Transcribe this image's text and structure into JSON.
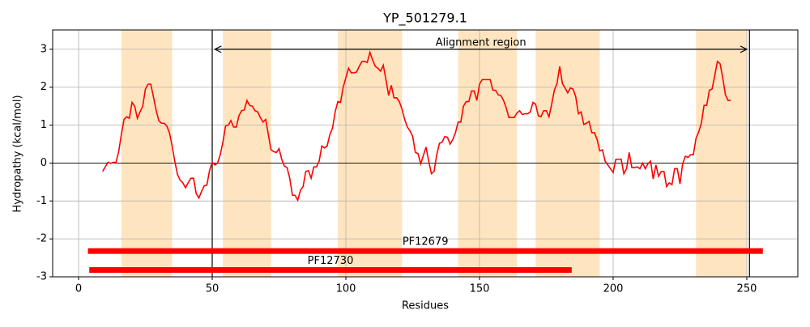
{
  "chart_data": {
    "type": "line",
    "title": "YP_501279.1",
    "xlabel": "Residues",
    "ylabel": "Hydropathy (kcal/mol)",
    "color": "#ff0000",
    "x": [
      9,
      10,
      11,
      12,
      13,
      14,
      15,
      16,
      17,
      18,
      19,
      20,
      21,
      22,
      23,
      24,
      25,
      26,
      27,
      28,
      29,
      30,
      31,
      32,
      33,
      34,
      35,
      36,
      37,
      38,
      39,
      40,
      41,
      42,
      43,
      44,
      45,
      46,
      47,
      48,
      49,
      50,
      51,
      52,
      53,
      54,
      55,
      56,
      57,
      58,
      59,
      60,
      61,
      62,
      63,
      64,
      65,
      66,
      67,
      68,
      69,
      70,
      71,
      72,
      73,
      74,
      75,
      76,
      77,
      78,
      79,
      80,
      81,
      82,
      83,
      84,
      85,
      86,
      87,
      88,
      89,
      90,
      91,
      92,
      93,
      94,
      95,
      96,
      97,
      98,
      99,
      100,
      101,
      102,
      103,
      104,
      105,
      106,
      107,
      108,
      109,
      110,
      111,
      112,
      113,
      114,
      115,
      116,
      117,
      118,
      119,
      120,
      121,
      122,
      123,
      124,
      125,
      126,
      127,
      128,
      129,
      130,
      131,
      132,
      133,
      134,
      135,
      136,
      137,
      138,
      139,
      140,
      141,
      142,
      143,
      144,
      145,
      146,
      147,
      148,
      149,
      150,
      151,
      152,
      153,
      154,
      155,
      156,
      157,
      158,
      159,
      160,
      161,
      162,
      163,
      164,
      165,
      166,
      167,
      168,
      169,
      170,
      171,
      172,
      173,
      174,
      175,
      176,
      177,
      178,
      179,
      180,
      181,
      182,
      183,
      184,
      185,
      186,
      187,
      188,
      189,
      190,
      191,
      192,
      193,
      194,
      195,
      196,
      197,
      198,
      199,
      200,
      201,
      202,
      203,
      204,
      205,
      206,
      207,
      208,
      209,
      210,
      211,
      212,
      213,
      214,
      215,
      216,
      217,
      218,
      219,
      220,
      221,
      222,
      223,
      224,
      225,
      226,
      227,
      228,
      229,
      230,
      231,
      232,
      233,
      234,
      235,
      236,
      237,
      238,
      239,
      240,
      241,
      242,
      243,
      244
    ],
    "values": [
      -0.22,
      -0.1,
      0.02,
      -0.01,
      0.02,
      0.02,
      0.3,
      0.75,
      1.15,
      1.22,
      1.18,
      1.6,
      1.5,
      1.18,
      1.35,
      1.5,
      1.95,
      2.08,
      2.08,
      1.75,
      1.4,
      1.12,
      1.05,
      1.05,
      0.98,
      0.8,
      0.45,
      0.05,
      -0.3,
      -0.45,
      -0.52,
      -0.65,
      -0.52,
      -0.4,
      -0.4,
      -0.8,
      -0.92,
      -0.75,
      -0.6,
      -0.58,
      -0.2,
      0.02,
      -0.05,
      0.0,
      0.22,
      0.55,
      0.98,
      1.0,
      1.12,
      0.95,
      0.95,
      1.25,
      1.38,
      1.4,
      1.65,
      1.52,
      1.5,
      1.38,
      1.35,
      1.2,
      1.08,
      1.15,
      0.75,
      0.35,
      0.3,
      0.28,
      0.38,
      0.1,
      -0.08,
      -0.12,
      -0.4,
      -0.85,
      -0.85,
      -0.98,
      -0.72,
      -0.62,
      -0.22,
      -0.2,
      -0.4,
      -0.1,
      -0.1,
      0.05,
      0.45,
      0.4,
      0.45,
      0.75,
      0.92,
      1.35,
      1.62,
      1.6,
      2.0,
      2.25,
      2.5,
      2.38,
      2.38,
      2.4,
      2.55,
      2.68,
      2.68,
      2.65,
      2.92,
      2.72,
      2.55,
      2.5,
      2.42,
      2.58,
      2.2,
      1.78,
      2.05,
      1.72,
      1.72,
      1.62,
      1.42,
      1.15,
      0.95,
      0.85,
      0.7,
      0.28,
      0.25,
      -0.02,
      0.2,
      0.42,
      0.05,
      -0.28,
      -0.22,
      0.22,
      0.52,
      0.55,
      0.7,
      0.68,
      0.5,
      0.62,
      0.8,
      1.08,
      1.08,
      1.5,
      1.62,
      1.62,
      1.9,
      1.9,
      1.65,
      2.08,
      2.2,
      2.2,
      2.2,
      2.2,
      1.92,
      1.92,
      1.8,
      1.78,
      1.65,
      1.45,
      1.2,
      1.2,
      1.2,
      1.32,
      1.38,
      1.28,
      1.3,
      1.3,
      1.35,
      1.6,
      1.55,
      1.25,
      1.22,
      1.38,
      1.38,
      1.22,
      1.55,
      1.92,
      2.1,
      2.55,
      2.1,
      1.98,
      1.85,
      1.98,
      1.95,
      1.75,
      1.3,
      1.35,
      1.02,
      1.05,
      1.1,
      0.8,
      0.8,
      0.62,
      0.32,
      0.35,
      0.05,
      -0.05,
      -0.15,
      -0.25,
      0.1,
      0.1,
      0.1,
      -0.28,
      -0.15,
      0.28,
      -0.12,
      -0.12,
      -0.1,
      -0.15,
      0.0,
      -0.15,
      -0.02,
      0.05,
      -0.42,
      -0.05,
      -0.35,
      -0.22,
      -0.22,
      -0.62,
      -0.52,
      -0.57,
      -0.15,
      -0.15,
      -0.55,
      -0.02,
      0.18,
      0.15,
      0.22,
      0.22,
      0.65,
      0.82,
      1.05,
      1.52,
      1.52,
      1.92,
      1.95,
      2.3,
      2.68,
      2.62,
      2.25,
      1.8,
      1.65,
      1.65
    ],
    "shaded_regions": [
      [
        16,
        35
      ],
      [
        54,
        72
      ],
      [
        97,
        121
      ],
      [
        142,
        164
      ],
      [
        171,
        195
      ],
      [
        231,
        250
      ]
    ],
    "shade_color": "#ffe5bf",
    "vlines": [
      50,
      251
    ],
    "hline": 0,
    "annotation": {
      "text": "Alignment region",
      "y": 3,
      "start": 51,
      "end": 250
    },
    "domains": [
      {
        "name": "PF12679",
        "start": 3.5,
        "end": 256,
        "y": -2.32
      },
      {
        "name": "PF12730",
        "start": 4,
        "end": 184.5,
        "y": -2.82
      }
    ],
    "domain_color": "#ff0000",
    "xlim": [
      -9.7,
      269.1
    ],
    "ylim": [
      -3,
      3.51
    ],
    "xticks": [
      0,
      50,
      100,
      150,
      200,
      250
    ],
    "yticks": [
      -3,
      -2,
      -1,
      0,
      1,
      2,
      3
    ],
    "grid": true
  }
}
